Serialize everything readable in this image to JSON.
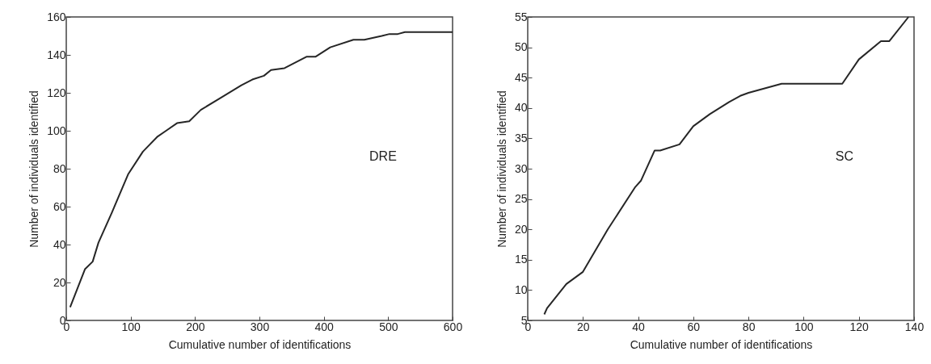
{
  "chart_data": [
    {
      "type": "line",
      "xlabel": "Cumulative number of identifications",
      "ylabel": "Number of individuals identified",
      "annotations": [
        "DRE"
      ],
      "grid": false,
      "marker": "none",
      "line_style": "solid",
      "xlim": [
        0,
        600
      ],
      "xticks": [
        0,
        100,
        200,
        300,
        400,
        500,
        600
      ],
      "ylim": [
        0,
        160
      ],
      "yticks": [
        0,
        20,
        40,
        60,
        80,
        100,
        120,
        140,
        160
      ],
      "series": [
        {
          "color": "#262626",
          "x": [
            6,
            29,
            41,
            50,
            71,
            96,
            119,
            142,
            155,
            172,
            191,
            209,
            238,
            272,
            289,
            307,
            318,
            339,
            373,
            387,
            410,
            446,
            463,
            490,
            502,
            515,
            526,
            600
          ],
          "values": [
            7,
            27,
            31,
            41,
            57,
            77,
            89,
            97,
            100,
            104,
            105,
            111,
            117,
            124,
            127,
            129,
            132,
            133,
            139,
            139,
            144,
            148,
            148,
            150,
            151,
            151,
            152,
            152
          ]
        }
      ]
    },
    {
      "type": "line",
      "xlabel": "Cumulative number of identifications",
      "ylabel": "Number of individuals identified",
      "annotations": [
        "SC"
      ],
      "grid": false,
      "marker": "none",
      "line_style": "solid",
      "xlim": [
        0,
        140
      ],
      "xticks": [
        0,
        20,
        40,
        60,
        80,
        100,
        120,
        140
      ],
      "ylim": [
        5,
        55
      ],
      "yticks": [
        5,
        10,
        15,
        20,
        25,
        30,
        35,
        40,
        45,
        50,
        55
      ],
      "series": [
        {
          "color": "#262626",
          "x": [
            6,
            7,
            14,
            20,
            29,
            39,
            41,
            46,
            48,
            55,
            60,
            66,
            73,
            77,
            80,
            92,
            114,
            120,
            128,
            131,
            138
          ],
          "values": [
            6,
            7,
            11,
            13,
            20,
            27,
            28,
            33,
            33,
            34,
            37,
            39,
            41,
            42,
            42.5,
            44,
            44,
            48,
            51,
            51,
            55
          ]
        }
      ]
    }
  ]
}
